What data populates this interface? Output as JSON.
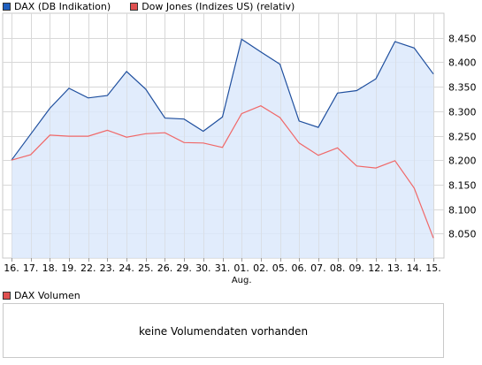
{
  "legend": {
    "dax_label": "DAX (DB Indikation)",
    "dow_label": "Dow Jones (Indizes US) (relativ)"
  },
  "colors": {
    "dax_line": "#1f4f9e",
    "dax_fill": "#dce9fb",
    "dax_swatch": "#1f5fbf",
    "dow_line": "#f06868",
    "dow_swatch": "#e05050",
    "vol_swatch": "#e05050",
    "grid": "#d8d8d8",
    "axis": "#9a9a9a"
  },
  "chart_data": {
    "type": "line",
    "categories": [
      "16.",
      "17.",
      "18.",
      "19.",
      "22.",
      "23.",
      "24.",
      "25.",
      "26.",
      "29.",
      "30.",
      "31.",
      "01.",
      "02.",
      "05.",
      "06.",
      "07.",
      "08.",
      "09.",
      "12.",
      "13.",
      "14.",
      "15."
    ],
    "month_label": "Aug.",
    "month_label_index": 12,
    "y_ticks": [
      "8.050",
      "8.100",
      "8.150",
      "8.200",
      "8.250",
      "8.300",
      "8.350",
      "8.400",
      "8.450"
    ],
    "ylim": [
      8000,
      8500
    ],
    "grid": true,
    "legend_position": "top",
    "series": [
      {
        "name": "DAX (DB Indikation)",
        "values": [
          8200,
          8253,
          8306,
          8347,
          8327,
          8332,
          8381,
          8345,
          8286,
          8284,
          8259,
          8288,
          8447,
          8421,
          8396,
          8280,
          8267,
          8337,
          8342,
          8366,
          8442,
          8429,
          8376
        ]
      },
      {
        "name": "Dow Jones (Indizes US) (relativ)",
        "values": [
          8200,
          8211,
          8251,
          8249,
          8249,
          8261,
          8247,
          8254,
          8256,
          8236,
          8235,
          8226,
          8295,
          8311,
          8287,
          8235,
          8210,
          8225,
          8188,
          8184,
          8199,
          8143,
          8041
        ]
      }
    ]
  },
  "volume": {
    "legend_label": "DAX Volumen",
    "message": "keine Volumendaten vorhanden"
  }
}
